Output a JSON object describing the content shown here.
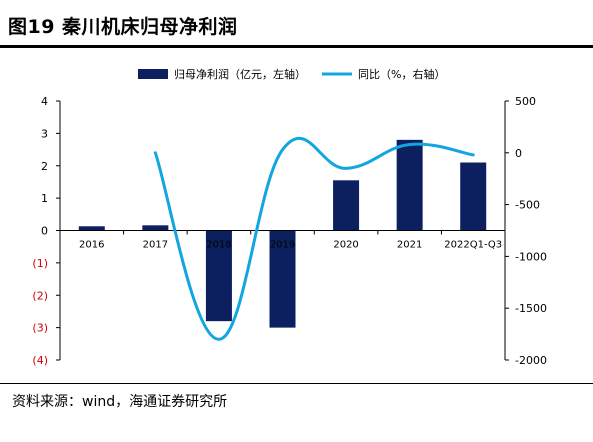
{
  "figure": {
    "title": "图19 秦川机床归母净利润",
    "source": "资料来源：wind，海通证券研究所"
  },
  "colors": {
    "bar": "#0c2060",
    "line": "#11a6e0",
    "negative_tick": "#d0000a",
    "axis": "#000000"
  },
  "chart_data": {
    "type": "bar",
    "categories": [
      "2016",
      "2017",
      "2018",
      "2019",
      "2020",
      "2021",
      "2022Q1-Q3"
    ],
    "series": [
      {
        "name": "归母净利润（亿元，左轴）",
        "type": "bar",
        "axis": "left",
        "values": [
          0.13,
          0.16,
          -2.8,
          -3.0,
          1.55,
          2.8,
          2.1
        ]
      },
      {
        "name": "同比（%，右轴）",
        "type": "line",
        "axis": "right",
        "values": [
          null,
          0,
          -1800,
          30,
          -150,
          80,
          -20
        ]
      }
    ],
    "y_left": {
      "ylim": [
        -4,
        4
      ],
      "ticks": [
        "4",
        "3",
        "2",
        "1",
        "0",
        "(1)",
        "(2)",
        "(3)",
        "(4)"
      ]
    },
    "y_right": {
      "ylim": [
        -2000,
        500
      ],
      "ticks": [
        "500",
        "0",
        "-500",
        "-1000",
        "-1500",
        "-2000"
      ]
    },
    "legend_position": "top",
    "grid": false
  }
}
